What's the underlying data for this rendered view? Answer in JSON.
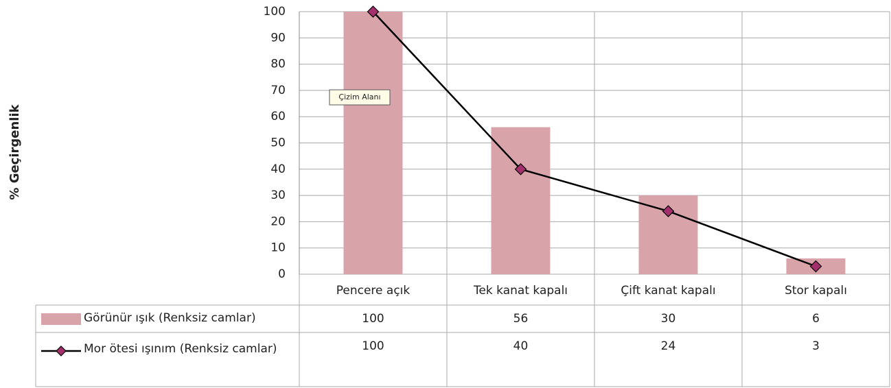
{
  "chart_data": {
    "type": "bar_line",
    "y_axis_label": "% Geçirgenlik",
    "tooltip": "Çizim Alanı",
    "categories": [
      "Pencere açık",
      "Tek kanat kapalı",
      "Çift kanat kapalı",
      "Stor kapalı"
    ],
    "series": [
      {
        "name": "Görünür ışık (Renksiz camlar)",
        "type": "bar",
        "color": "#d8a4aa",
        "values": [
          100,
          56,
          30,
          6
        ]
      },
      {
        "name": "Mor ötesi ışınım (Renksiz camlar)",
        "type": "line",
        "color": "#000000",
        "marker_color": "#a3306c",
        "values": [
          100,
          40,
          24,
          3
        ]
      }
    ],
    "ylim": [
      0,
      100
    ],
    "yticks": [
      0,
      10,
      20,
      30,
      40,
      50,
      60,
      70,
      80,
      90,
      100
    ],
    "grid": true
  }
}
